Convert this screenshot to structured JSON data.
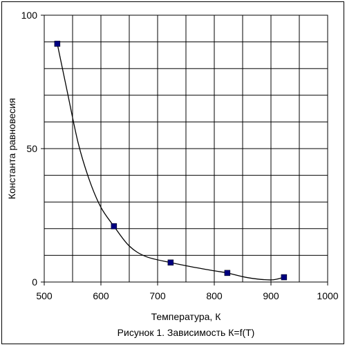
{
  "chart_data": {
    "type": "line",
    "title": "",
    "xlabel": "Температура, К",
    "ylabel": "Константа равновесия",
    "caption": "Рисунок 1. Зависимость К=f(T)",
    "xlim": [
      500,
      1000
    ],
    "ylim": [
      0,
      100
    ],
    "x_ticks": [
      500,
      600,
      700,
      800,
      900,
      1000
    ],
    "y_ticks": [
      0,
      50,
      100
    ],
    "x_grid_step": 50,
    "y_grid_step": 10,
    "grid": true,
    "legend": "none",
    "series": [
      {
        "x": [
          523,
          623,
          723,
          823,
          923
        ],
        "y": [
          89.3,
          20.9,
          7.3,
          3.4,
          1.8
        ],
        "marker": "square",
        "marker_color": "#000080",
        "line_color": "#000000"
      }
    ],
    "smoothed_curve": {
      "x": [
        523,
        540,
        560,
        580,
        600,
        623,
        650,
        680,
        723,
        760,
        800,
        823,
        860,
        900,
        923
      ],
      "y": [
        89.3,
        72,
        52,
        38,
        28,
        20.9,
        13.5,
        9.5,
        7.3,
        5.7,
        4.2,
        3.4,
        1.6,
        0.8,
        1.8
      ]
    }
  }
}
